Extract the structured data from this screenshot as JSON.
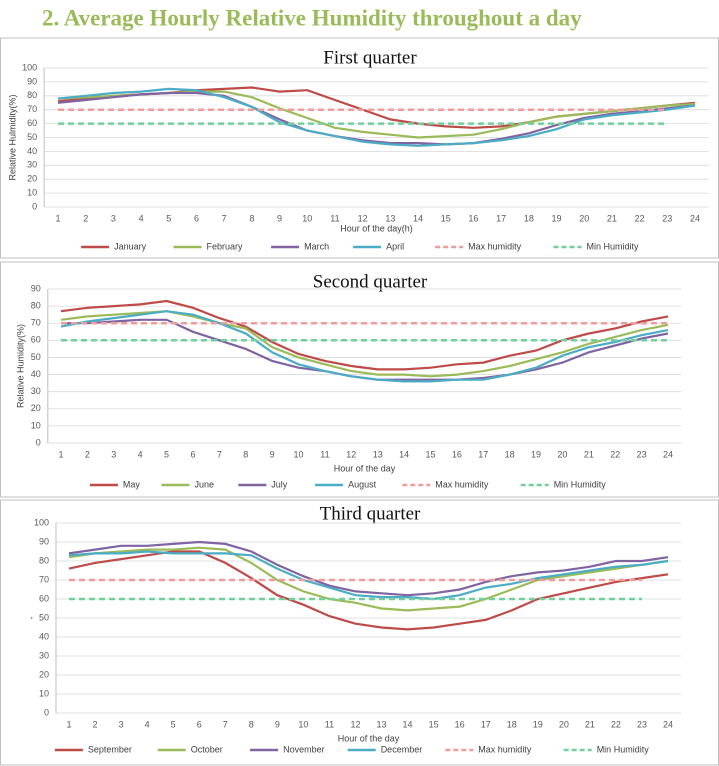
{
  "title": "2. Average Hourly Relative Humidity throughout a day",
  "chart_data": [
    {
      "type": "line",
      "title": "First quarter",
      "xlabel": "Hour of the day(h)",
      "ylabel": "Relative Hulmidity(%)",
      "categories": [
        1,
        2,
        3,
        4,
        5,
        6,
        7,
        8,
        9,
        10,
        11,
        12,
        13,
        14,
        15,
        16,
        17,
        18,
        19,
        20,
        21,
        22,
        23,
        24
      ],
      "ylim": [
        0,
        100
      ],
      "yticks": [
        0,
        10,
        20,
        30,
        40,
        50,
        60,
        70,
        80,
        90,
        100
      ],
      "grid": true,
      "legend": "bottom",
      "series": [
        {
          "name": "January",
          "color": "#be4b48",
          "values": [
            76,
            78,
            80,
            81,
            82,
            84,
            85,
            86,
            83,
            84,
            77,
            70,
            63,
            60,
            58,
            57,
            58,
            61,
            65,
            67,
            69,
            71,
            73,
            75
          ]
        },
        {
          "name": "February",
          "color": "#9bbb59",
          "values": [
            78,
            79,
            80,
            81,
            82,
            83,
            83,
            79,
            71,
            64,
            57,
            54,
            52,
            50,
            51,
            52,
            56,
            61,
            65,
            67,
            69,
            71,
            73,
            74
          ]
        },
        {
          "name": "March",
          "color": "#8064a2",
          "values": [
            75,
            77,
            79,
            81,
            82,
            82,
            80,
            72,
            63,
            55,
            51,
            48,
            46,
            46,
            45,
            46,
            49,
            53,
            59,
            64,
            67,
            69,
            71,
            73
          ]
        },
        {
          "name": "April",
          "color": "#4bacc6",
          "values": [
            78,
            80,
            82,
            83,
            85,
            84,
            79,
            72,
            61,
            55,
            51,
            47,
            45,
            44,
            45,
            46,
            48,
            51,
            56,
            63,
            66,
            68,
            70,
            73
          ]
        },
        {
          "name": "Max humidity",
          "color": "#f19c9c",
          "dashed": true,
          "values": [
            70,
            70,
            70,
            70,
            70,
            70,
            70,
            70,
            70,
            70,
            70,
            70,
            70,
            70,
            70,
            70,
            70,
            70,
            70,
            70,
            70,
            70,
            70,
            null
          ]
        },
        {
          "name": "Min Humidity",
          "color": "#72cf9e",
          "dashed": true,
          "values": [
            60,
            60,
            60,
            60,
            60,
            60,
            60,
            60,
            60,
            60,
            60,
            60,
            60,
            60,
            60,
            60,
            60,
            60,
            60,
            60,
            60,
            60,
            60,
            null
          ]
        }
      ]
    },
    {
      "type": "line",
      "title": "Second quarter",
      "xlabel": "Hour of the day",
      "ylabel": "Relative Humidity(%)",
      "categories": [
        1,
        2,
        3,
        4,
        5,
        6,
        7,
        8,
        9,
        10,
        11,
        12,
        13,
        14,
        15,
        16,
        17,
        18,
        19,
        20,
        21,
        22,
        23,
        24
      ],
      "ylim": [
        0,
        90
      ],
      "yticks": [
        0,
        10,
        20,
        30,
        40,
        50,
        60,
        70,
        80,
        90
      ],
      "grid": true,
      "legend": "bottom",
      "series": [
        {
          "name": "May",
          "color": "#be4b48",
          "values": [
            77,
            79,
            80,
            81,
            83,
            79,
            73,
            68,
            59,
            52,
            48,
            45,
            43,
            43,
            44,
            46,
            47,
            51,
            54,
            60,
            64,
            67,
            71,
            74
          ]
        },
        {
          "name": "June",
          "color": "#9bbb59",
          "values": [
            72,
            74,
            75,
            76,
            77,
            74,
            70,
            67,
            56,
            50,
            46,
            42,
            40,
            40,
            39,
            40,
            42,
            45,
            49,
            53,
            58,
            62,
            66,
            69
          ]
        },
        {
          "name": "July",
          "color": "#8064a2",
          "values": [
            70,
            70,
            71,
            72,
            72,
            65,
            60,
            55,
            48,
            44,
            42,
            39,
            37,
            37,
            37,
            37,
            38,
            40,
            43,
            47,
            53,
            57,
            61,
            64
          ]
        },
        {
          "name": "August",
          "color": "#4bacc6",
          "values": [
            68,
            71,
            73,
            75,
            77,
            75,
            70,
            64,
            53,
            46,
            42,
            39,
            37,
            36,
            36,
            37,
            37,
            40,
            44,
            51,
            56,
            59,
            63,
            66
          ]
        },
        {
          "name": "Max humidity",
          "color": "#f19c9c",
          "dashed": true,
          "values": [
            70,
            70,
            70,
            70,
            70,
            70,
            70,
            70,
            70,
            70,
            70,
            70,
            70,
            70,
            70,
            70,
            70,
            70,
            70,
            70,
            70,
            70,
            70,
            70
          ]
        },
        {
          "name": "Min Humidity",
          "color": "#72cf9e",
          "dashed": true,
          "values": [
            60,
            60,
            60,
            60,
            60,
            60,
            60,
            60,
            60,
            60,
            60,
            60,
            60,
            60,
            60,
            60,
            60,
            60,
            60,
            60,
            60,
            60,
            60,
            60
          ]
        }
      ]
    },
    {
      "type": "line",
      "title": "Third quarter",
      "xlabel": "Hour of the day",
      "ylabel": "-",
      "categories": [
        1,
        2,
        3,
        4,
        5,
        6,
        7,
        8,
        9,
        10,
        11,
        12,
        13,
        14,
        15,
        16,
        17,
        18,
        19,
        20,
        21,
        22,
        23,
        24
      ],
      "ylim": [
        0,
        100
      ],
      "yticks": [
        0,
        10,
        20,
        30,
        40,
        50,
        60,
        70,
        80,
        90,
        100
      ],
      "grid": true,
      "legend": "bottom",
      "series": [
        {
          "name": "September",
          "color": "#be4b48",
          "values": [
            76,
            79,
            81,
            83,
            85,
            85,
            79,
            71,
            62,
            57,
            51,
            47,
            45,
            44,
            45,
            47,
            49,
            54,
            60,
            63,
            66,
            69,
            71,
            73
          ]
        },
        {
          "name": "October",
          "color": "#9bbb59",
          "values": [
            82,
            84,
            85,
            86,
            86,
            87,
            86,
            79,
            70,
            64,
            60,
            58,
            55,
            54,
            55,
            56,
            60,
            65,
            70,
            72,
            74,
            76,
            78,
            80
          ]
        },
        {
          "name": "November",
          "color": "#8064a2",
          "values": [
            84,
            86,
            88,
            88,
            89,
            90,
            89,
            85,
            78,
            72,
            67,
            64,
            63,
            62,
            63,
            65,
            69,
            72,
            74,
            75,
            77,
            80,
            80,
            82
          ]
        },
        {
          "name": "December",
          "color": "#4bacc6",
          "values": [
            83,
            84,
            84,
            85,
            84,
            84,
            84,
            83,
            76,
            70,
            66,
            62,
            61,
            61,
            60,
            62,
            66,
            68,
            71,
            73,
            75,
            77,
            78,
            80
          ]
        },
        {
          "name": "Max humidity",
          "color": "#f19c9c",
          "dashed": true,
          "values": [
            70,
            70,
            70,
            70,
            70,
            70,
            70,
            70,
            70,
            70,
            70,
            70,
            70,
            70,
            70,
            70,
            70,
            70,
            70,
            70,
            70,
            70,
            70,
            null
          ]
        },
        {
          "name": "Min Humidity",
          "color": "#72cf9e",
          "dashed": true,
          "values": [
            60,
            60,
            60,
            60,
            60,
            60,
            60,
            60,
            60,
            60,
            60,
            60,
            60,
            60,
            60,
            60,
            60,
            60,
            60,
            60,
            60,
            60,
            60,
            null
          ]
        }
      ]
    }
  ]
}
